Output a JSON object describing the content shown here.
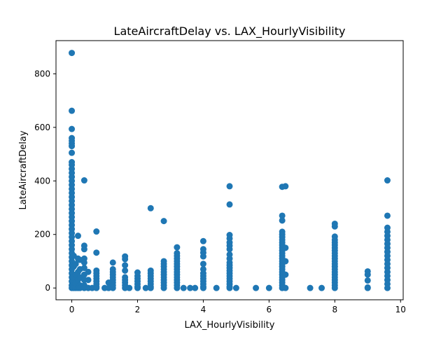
{
  "chart_data": {
    "type": "scatter",
    "title": "LateAircraftDelay vs. LAX_HourlyVisibility",
    "xlabel": "LAX_HourlyVisibility",
    "ylabel": "LateAircraftDelay",
    "xlim": [
      -0.48,
      10.08
    ],
    "ylim": [
      -44,
      924
    ],
    "x_ticks": [
      0,
      2,
      4,
      6,
      8,
      10
    ],
    "y_ticks": [
      0,
      200,
      400,
      600,
      800
    ],
    "grid": false,
    "color": "#1f77b4",
    "points": [
      [
        0,
        878
      ],
      [
        0,
        662
      ],
      [
        0,
        594
      ],
      [
        0,
        560
      ],
      [
        0,
        550
      ],
      [
        0,
        540
      ],
      [
        0,
        530
      ],
      [
        0,
        505
      ],
      [
        0,
        470
      ],
      [
        0,
        460
      ],
      [
        0,
        445
      ],
      [
        0,
        430
      ],
      [
        0,
        415
      ],
      [
        0,
        400
      ],
      [
        0,
        385
      ],
      [
        0,
        370
      ],
      [
        0,
        355
      ],
      [
        0,
        340
      ],
      [
        0,
        325
      ],
      [
        0,
        310
      ],
      [
        0,
        295
      ],
      [
        0,
        280
      ],
      [
        0,
        265
      ],
      [
        0,
        250
      ],
      [
        0,
        235
      ],
      [
        0,
        220
      ],
      [
        0,
        205
      ],
      [
        0,
        190
      ],
      [
        0,
        175
      ],
      [
        0,
        160
      ],
      [
        0,
        145
      ],
      [
        0,
        130
      ],
      [
        0,
        115
      ],
      [
        0,
        100
      ],
      [
        0,
        85
      ],
      [
        0,
        70
      ],
      [
        0,
        55
      ],
      [
        0,
        40
      ],
      [
        0,
        25
      ],
      [
        0,
        10
      ],
      [
        0,
        0
      ],
      [
        0.06,
        120
      ],
      [
        0.06,
        80
      ],
      [
        0.06,
        40
      ],
      [
        0.06,
        0
      ],
      [
        0.12,
        90
      ],
      [
        0.12,
        50
      ],
      [
        0.12,
        20
      ],
      [
        0.12,
        0
      ],
      [
        0.19,
        195
      ],
      [
        0.19,
        110
      ],
      [
        0.19,
        60
      ],
      [
        0.19,
        30
      ],
      [
        0.19,
        0
      ],
      [
        0.25,
        105
      ],
      [
        0.25,
        70
      ],
      [
        0.25,
        40
      ],
      [
        0.25,
        10
      ],
      [
        0.25,
        0
      ],
      [
        0.38,
        402
      ],
      [
        0.38,
        158
      ],
      [
        0.38,
        145
      ],
      [
        0.38,
        110
      ],
      [
        0.38,
        95
      ],
      [
        0.38,
        75
      ],
      [
        0.38,
        50
      ],
      [
        0.38,
        30
      ],
      [
        0.38,
        10
      ],
      [
        0.38,
        0
      ],
      [
        0.5,
        60
      ],
      [
        0.5,
        30
      ],
      [
        0.5,
        0
      ],
      [
        0.62,
        0
      ],
      [
        0.75,
        211
      ],
      [
        0.75,
        132
      ],
      [
        0.75,
        65
      ],
      [
        0.75,
        55
      ],
      [
        0.75,
        45
      ],
      [
        0.75,
        35
      ],
      [
        0.75,
        25
      ],
      [
        0.75,
        15
      ],
      [
        0.75,
        5
      ],
      [
        0.75,
        0
      ],
      [
        1.0,
        0
      ],
      [
        1.12,
        20
      ],
      [
        1.12,
        0
      ],
      [
        1.25,
        95
      ],
      [
        1.25,
        70
      ],
      [
        1.25,
        60
      ],
      [
        1.25,
        50
      ],
      [
        1.25,
        40
      ],
      [
        1.25,
        30
      ],
      [
        1.25,
        20
      ],
      [
        1.25,
        10
      ],
      [
        1.25,
        0
      ],
      [
        1.62,
        118
      ],
      [
        1.62,
        108
      ],
      [
        1.62,
        85
      ],
      [
        1.62,
        65
      ],
      [
        1.62,
        40
      ],
      [
        1.62,
        30
      ],
      [
        1.62,
        20
      ],
      [
        1.62,
        10
      ],
      [
        1.62,
        0
      ],
      [
        1.75,
        0
      ],
      [
        2.0,
        58
      ],
      [
        2.0,
        45
      ],
      [
        2.0,
        35
      ],
      [
        2.0,
        25
      ],
      [
        2.0,
        15
      ],
      [
        2.0,
        5
      ],
      [
        2.0,
        0
      ],
      [
        2.25,
        0
      ],
      [
        2.4,
        298
      ],
      [
        2.4,
        65
      ],
      [
        2.4,
        55
      ],
      [
        2.4,
        45
      ],
      [
        2.4,
        35
      ],
      [
        2.4,
        25
      ],
      [
        2.4,
        15
      ],
      [
        2.4,
        5
      ],
      [
        2.4,
        0
      ],
      [
        2.8,
        250
      ],
      [
        2.8,
        100
      ],
      [
        2.8,
        90
      ],
      [
        2.8,
        80
      ],
      [
        2.8,
        70
      ],
      [
        2.8,
        60
      ],
      [
        2.8,
        50
      ],
      [
        2.8,
        40
      ],
      [
        2.8,
        30
      ],
      [
        2.8,
        20
      ],
      [
        2.8,
        10
      ],
      [
        2.8,
        0
      ],
      [
        3.2,
        152
      ],
      [
        3.2,
        130
      ],
      [
        3.2,
        120
      ],
      [
        3.2,
        110
      ],
      [
        3.2,
        100
      ],
      [
        3.2,
        90
      ],
      [
        3.2,
        80
      ],
      [
        3.2,
        70
      ],
      [
        3.2,
        60
      ],
      [
        3.2,
        50
      ],
      [
        3.2,
        40
      ],
      [
        3.2,
        30
      ],
      [
        3.2,
        20
      ],
      [
        3.2,
        10
      ],
      [
        3.2,
        0
      ],
      [
        3.4,
        0
      ],
      [
        3.6,
        0
      ],
      [
        3.75,
        0
      ],
      [
        4.0,
        175
      ],
      [
        4.0,
        145
      ],
      [
        4.0,
        132
      ],
      [
        4.0,
        118
      ],
      [
        4.0,
        90
      ],
      [
        4.0,
        70
      ],
      [
        4.0,
        55
      ],
      [
        4.0,
        45
      ],
      [
        4.0,
        35
      ],
      [
        4.0,
        25
      ],
      [
        4.0,
        15
      ],
      [
        4.0,
        5
      ],
      [
        4.0,
        0
      ],
      [
        4.4,
        0
      ],
      [
        4.8,
        380
      ],
      [
        4.8,
        312
      ],
      [
        4.8,
        198
      ],
      [
        4.8,
        185
      ],
      [
        4.8,
        170
      ],
      [
        4.8,
        158
      ],
      [
        4.8,
        145
      ],
      [
        4.8,
        125
      ],
      [
        4.8,
        110
      ],
      [
        4.8,
        95
      ],
      [
        4.8,
        85
      ],
      [
        4.8,
        75
      ],
      [
        4.8,
        65
      ],
      [
        4.8,
        55
      ],
      [
        4.8,
        45
      ],
      [
        4.8,
        35
      ],
      [
        4.8,
        25
      ],
      [
        4.8,
        15
      ],
      [
        4.8,
        5
      ],
      [
        4.8,
        0
      ],
      [
        5.0,
        0
      ],
      [
        5.6,
        0
      ],
      [
        6.0,
        0
      ],
      [
        6.4,
        378
      ],
      [
        6.4,
        270
      ],
      [
        6.4,
        252
      ],
      [
        6.4,
        210
      ],
      [
        6.4,
        200
      ],
      [
        6.4,
        190
      ],
      [
        6.4,
        180
      ],
      [
        6.4,
        170
      ],
      [
        6.4,
        160
      ],
      [
        6.4,
        150
      ],
      [
        6.4,
        140
      ],
      [
        6.4,
        130
      ],
      [
        6.4,
        120
      ],
      [
        6.4,
        110
      ],
      [
        6.4,
        100
      ],
      [
        6.4,
        90
      ],
      [
        6.4,
        80
      ],
      [
        6.4,
        70
      ],
      [
        6.4,
        60
      ],
      [
        6.4,
        50
      ],
      [
        6.4,
        40
      ],
      [
        6.4,
        30
      ],
      [
        6.4,
        20
      ],
      [
        6.4,
        10
      ],
      [
        6.4,
        0
      ],
      [
        6.5,
        380
      ],
      [
        6.5,
        150
      ],
      [
        6.5,
        100
      ],
      [
        6.5,
        50
      ],
      [
        6.5,
        0
      ],
      [
        7.25,
        0
      ],
      [
        7.6,
        0
      ],
      [
        8.0,
        240
      ],
      [
        8.0,
        230
      ],
      [
        8.0,
        192
      ],
      [
        8.0,
        180
      ],
      [
        8.0,
        170
      ],
      [
        8.0,
        160
      ],
      [
        8.0,
        150
      ],
      [
        8.0,
        140
      ],
      [
        8.0,
        130
      ],
      [
        8.0,
        120
      ],
      [
        8.0,
        110
      ],
      [
        8.0,
        100
      ],
      [
        8.0,
        90
      ],
      [
        8.0,
        80
      ],
      [
        8.0,
        70
      ],
      [
        8.0,
        60
      ],
      [
        8.0,
        50
      ],
      [
        8.0,
        40
      ],
      [
        8.0,
        30
      ],
      [
        8.0,
        20
      ],
      [
        8.0,
        10
      ],
      [
        8.0,
        0
      ],
      [
        9.0,
        62
      ],
      [
        9.0,
        50
      ],
      [
        9.0,
        28
      ],
      [
        9.0,
        2
      ],
      [
        9.0,
        0
      ],
      [
        9.6,
        402
      ],
      [
        9.6,
        270
      ],
      [
        9.6,
        225
      ],
      [
        9.6,
        210
      ],
      [
        9.6,
        195
      ],
      [
        9.6,
        180
      ],
      [
        9.6,
        165
      ],
      [
        9.6,
        150
      ],
      [
        9.6,
        135
      ],
      [
        9.6,
        120
      ],
      [
        9.6,
        105
      ],
      [
        9.6,
        90
      ],
      [
        9.6,
        75
      ],
      [
        9.6,
        60
      ],
      [
        9.6,
        45
      ],
      [
        9.6,
        30
      ],
      [
        9.6,
        15
      ],
      [
        9.6,
        0
      ]
    ]
  }
}
